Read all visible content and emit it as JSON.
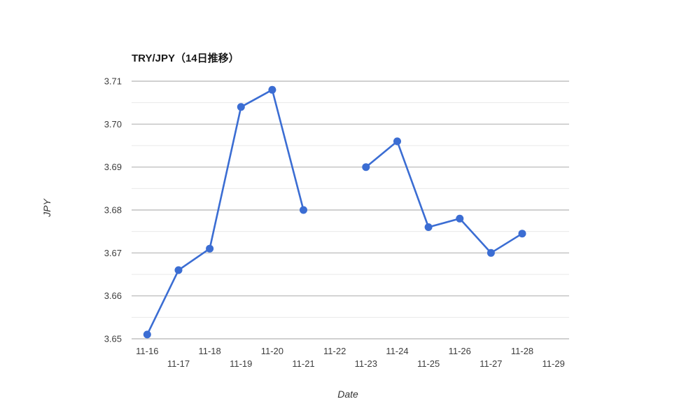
{
  "page": {
    "background": "#ffffff"
  },
  "chart_data": {
    "type": "line",
    "title": "TRY/JPY（14日推移）",
    "xlabel": "Date",
    "ylabel": "JPY",
    "categories": [
      "11-16",
      "11-17",
      "11-18",
      "11-19",
      "11-20",
      "11-21",
      "11-22",
      "11-23",
      "11-24",
      "11-25",
      "11-26",
      "11-27",
      "11-28",
      "11-29"
    ],
    "series": [
      {
        "name": "TRY/JPY",
        "values": [
          3.651,
          3.666,
          3.671,
          3.704,
          3.708,
          3.68,
          null,
          3.69,
          3.696,
          3.676,
          3.678,
          3.67,
          3.6745,
          null
        ]
      }
    ],
    "ylim": [
      3.65,
      3.71
    ],
    "yticks": [
      3.65,
      3.66,
      3.67,
      3.68,
      3.69,
      3.7,
      3.71
    ],
    "ytick_labels": [
      "3.65",
      "3.66",
      "3.67",
      "3.68",
      "3.69",
      "3.70",
      "3.71"
    ],
    "minor_gridlines": true,
    "grid": true,
    "legend_position": "none",
    "x_labels_staggered": true,
    "colors": {
      "line": "#3B6DD3",
      "marker": "#3B6DD3",
      "grid_major": "#b5b5b5",
      "grid_minor": "#e8e8e8",
      "tick_text": "#3d3d3d",
      "title_text": "#1a1a1a"
    }
  }
}
